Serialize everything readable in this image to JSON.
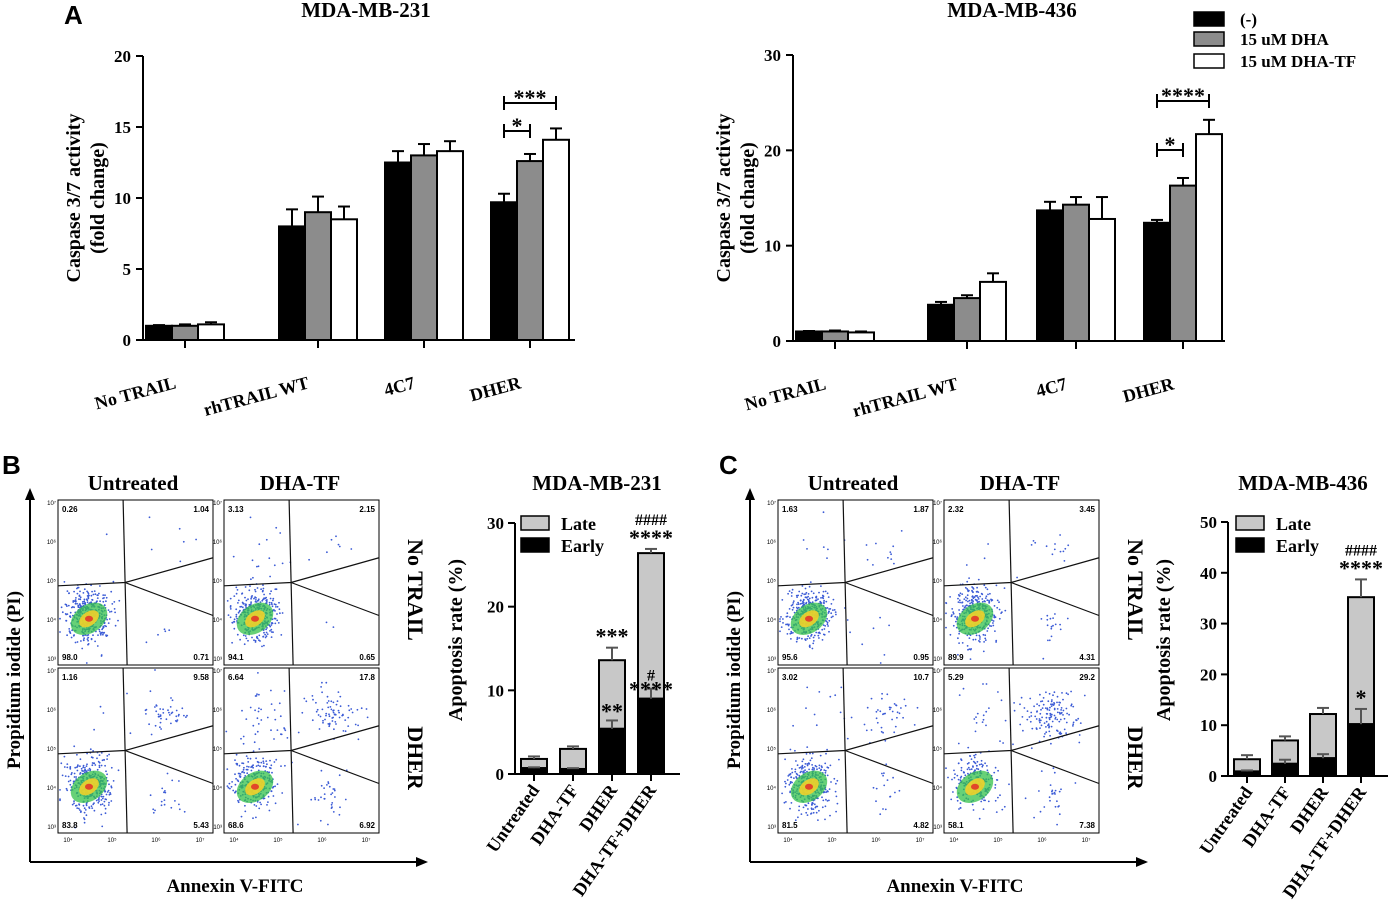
{
  "panels": {
    "A": "A",
    "B": "B",
    "C": "C"
  },
  "legend_A": {
    "items": [
      "(-)",
      "15 uM DHA",
      "15 uM DHA-TF"
    ],
    "colors": [
      "#000000",
      "#8c8c8c",
      "#ffffff"
    ]
  },
  "chart_data": [
    {
      "id": "A_left",
      "type": "bar",
      "title": "MDA-MB-231",
      "ylabel_line1": "Caspase 3/7 activity",
      "ylabel_line2": "(fold change)",
      "categories": [
        "No TRAIL",
        "rhTRAIL WT",
        "4C7",
        "DHER"
      ],
      "ylim": [
        0,
        20
      ],
      "yticks": [
        "0",
        "5",
        "10",
        "15",
        "20"
      ],
      "series": [
        {
          "name": "(-)",
          "color": "#000000",
          "values": [
            1.0,
            8.0,
            12.5,
            9.7
          ],
          "errors": [
            0.05,
            1.2,
            0.8,
            0.6
          ]
        },
        {
          "name": "15 uM DHA",
          "color": "#8c8c8c",
          "values": [
            1.0,
            9.0,
            13.0,
            12.6
          ],
          "errors": [
            0.1,
            1.1,
            0.8,
            0.5
          ]
        },
        {
          "name": "15 uM DHA-TF",
          "color": "#ffffff",
          "values": [
            1.1,
            8.5,
            13.3,
            14.1
          ],
          "errors": [
            0.15,
            0.9,
            0.7,
            0.8
          ]
        }
      ],
      "annotations": [
        "***",
        "*"
      ]
    },
    {
      "id": "A_right",
      "type": "bar",
      "title": "MDA-MB-436",
      "ylabel_line1": "Caspase 3/7 activity",
      "ylabel_line2": "(fold change)",
      "categories": [
        "No TRAIL",
        "rhTRAIL WT",
        "4C7",
        "DHER"
      ],
      "ylim": [
        0,
        30
      ],
      "yticks": [
        "0",
        "10",
        "20",
        "30"
      ],
      "series": [
        {
          "name": "(-)",
          "color": "#000000",
          "values": [
            1.0,
            3.8,
            13.7,
            12.4
          ],
          "errors": [
            0.05,
            0.3,
            0.9,
            0.3
          ]
        },
        {
          "name": "15 uM DHA",
          "color": "#8c8c8c",
          "values": [
            1.0,
            4.5,
            14.3,
            16.3
          ],
          "errors": [
            0.1,
            0.3,
            0.8,
            0.8
          ]
        },
        {
          "name": "15 uM DHA-TF",
          "color": "#ffffff",
          "values": [
            0.9,
            6.2,
            12.8,
            21.7
          ],
          "errors": [
            0.1,
            0.9,
            2.3,
            1.5
          ]
        }
      ],
      "annotations": [
        "****",
        "*"
      ]
    },
    {
      "id": "B_bar",
      "type": "bar",
      "stacked": true,
      "title": "MDA-MB-231",
      "ylabel": "Apoptosis rate (%)",
      "categories": [
        "Untreated",
        "DHA-TF",
        "DHER",
        "DHA-TF+DHER"
      ],
      "ylim": [
        0,
        30
      ],
      "yticks": [
        "0",
        "10",
        "20",
        "30"
      ],
      "legend": [
        "Late",
        "Early"
      ],
      "series": [
        {
          "name": "Early",
          "color": "#000000",
          "values": [
            0.7,
            0.6,
            5.4,
            9.0
          ],
          "errors": [
            0.1,
            0.1,
            1.0,
            1.2
          ]
        },
        {
          "name": "Late",
          "color": "#c8c8c8",
          "values": [
            1.1,
            2.4,
            8.2,
            17.4
          ],
          "errors": [
            0.3,
            0.3,
            1.5,
            0.5
          ]
        }
      ],
      "annotations": {
        "DHER_total": "***",
        "DHER_early": "**",
        "combo_total": "****",
        "combo_total_hash": "####",
        "combo_early": "****",
        "combo_early_hash": "#"
      }
    },
    {
      "id": "C_bar",
      "type": "bar",
      "stacked": true,
      "title": "MDA-MB-436",
      "ylabel": "Apoptosis rate (%)",
      "categories": [
        "Untreated",
        "DHA-TF",
        "DHER",
        "DHA-TF+DHER"
      ],
      "ylim": [
        0,
        50
      ],
      "yticks": [
        "0",
        "10",
        "20",
        "30",
        "40",
        "50"
      ],
      "legend": [
        "Late",
        "Early"
      ],
      "series": [
        {
          "name": "Early",
          "color": "#000000",
          "values": [
            0.9,
            2.4,
            3.5,
            10.2
          ],
          "errors": [
            0.2,
            0.8,
            0.8,
            3.0
          ]
        },
        {
          "name": "Late",
          "color": "#c8c8c8",
          "values": [
            2.4,
            4.6,
            8.7,
            25.0
          ],
          "errors": [
            0.8,
            0.8,
            1.2,
            3.5
          ]
        }
      ],
      "annotations": {
        "combo_total": "****",
        "combo_total_hash": "####",
        "combo_early": "*"
      }
    }
  ],
  "flow_B": {
    "col_labels": [
      "Untreated",
      "DHA-TF"
    ],
    "row_labels": [
      "No TRAIL",
      "DHER"
    ],
    "xlabel": "Annexin V-FITC",
    "ylabel": "Propidium iodide (PI)",
    "plots": [
      {
        "name": "untreated-no-trail",
        "q": [
          "0.26",
          "1.04",
          "98.0",
          "0.71"
        ]
      },
      {
        "name": "dhatf-no-trail",
        "q": [
          "3.13",
          "2.15",
          "94.1",
          "0.65"
        ]
      },
      {
        "name": "untreated-dher",
        "q": [
          "1.16",
          "9.58",
          "83.8",
          "5.43"
        ]
      },
      {
        "name": "dhatf-dher",
        "q": [
          "6.64",
          "17.8",
          "68.6",
          "6.92"
        ]
      }
    ]
  },
  "flow_C": {
    "col_labels": [
      "Untreated",
      "DHA-TF"
    ],
    "row_labels": [
      "No TRAIL",
      "DHER"
    ],
    "xlabel": "Annexin V-FITC",
    "ylabel": "Propidium iodide (PI)",
    "plots": [
      {
        "name": "untreated-no-trail",
        "q": [
          "1.63",
          "1.87",
          "95.6",
          "0.95"
        ]
      },
      {
        "name": "dhatf-no-trail",
        "q": [
          "2.32",
          "3.45",
          "89.9",
          "4.31"
        ]
      },
      {
        "name": "untreated-dher",
        "q": [
          "3.02",
          "10.7",
          "81.5",
          "4.82"
        ]
      },
      {
        "name": "dhatf-dher",
        "q": [
          "5.29",
          "29.2",
          "58.1",
          "7.38"
        ]
      }
    ]
  },
  "flow_axis": {
    "x_ticks": [
      "10⁴",
      "10⁵",
      "10⁶",
      "10⁷"
    ],
    "y_ticks": [
      "10³",
      "10⁴",
      "10⁵",
      "10⁶",
      "10⁷"
    ]
  }
}
